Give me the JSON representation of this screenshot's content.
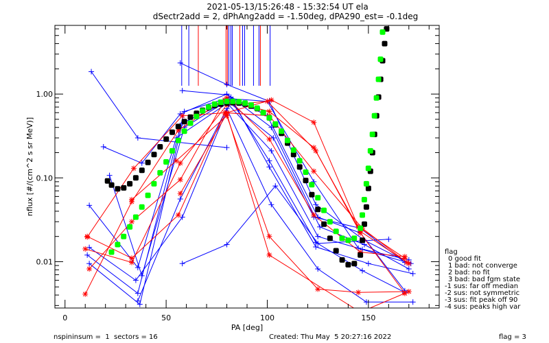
{
  "chart_data": {
    "type": "line",
    "title_line1": "2021-05-13/15:26:48 - 15:32:54 UT ela",
    "title_line2": "dSectr2add = 2, dPhAng2add = -1.50deg, dPA290_est=  -0.1deg",
    "xlabel": "PA [deg]",
    "ylabel": "nflux [#/(cm^2 s sr MeV)]",
    "xlim": [
      -5,
      185
    ],
    "ylim": [
      0.0028,
      6.6
    ],
    "yscale": "log",
    "x_ticks": [
      {
        "value": 0,
        "label": "0"
      },
      {
        "value": 50,
        "label": "50"
      },
      {
        "value": 100,
        "label": "100"
      },
      {
        "value": 150,
        "label": "150"
      }
    ],
    "y_ticks": [
      {
        "value": 1.0,
        "label": "1.00"
      },
      {
        "value": 0.1,
        "label": "0.10"
      },
      {
        "value": 0.01,
        "label": "0.01"
      }
    ],
    "vertical_markers": [
      {
        "x": 57.7,
        "color": "#0000ff"
      },
      {
        "x": 61.2,
        "color": "#0000ff"
      },
      {
        "x": 65.9,
        "color": "#ff0000"
      },
      {
        "x": 79.6,
        "color": "#ff0000"
      },
      {
        "x": 80.3,
        "color": "#ff0000"
      },
      {
        "x": 81.0,
        "color": "#0000ff"
      },
      {
        "x": 82.0,
        "color": "#0000ff"
      },
      {
        "x": 82.7,
        "color": "#0000ff"
      },
      {
        "x": 86.4,
        "color": "#ff0000"
      },
      {
        "x": 87.8,
        "color": "#0000ff"
      },
      {
        "x": 88.8,
        "color": "#0000ff"
      },
      {
        "x": 93.2,
        "color": "#0000ff"
      },
      {
        "x": 95.9,
        "color": "#0000ff"
      },
      {
        "x": 96.6,
        "color": "#ff0000"
      },
      {
        "x": 101.4,
        "color": "#0000ff"
      }
    ],
    "series": [
      {
        "name": "blue-1",
        "color": "#0000ff",
        "marker": "plus",
        "x": [
          13,
          36,
          80
        ],
        "y": [
          1.85,
          0.3,
          0.23
        ]
      },
      {
        "name": "blue-2",
        "color": "#0000ff",
        "marker": "plus",
        "x": [
          57,
          80,
          101,
          124,
          148,
          170
        ],
        "y": [
          2.35,
          1.3,
          0.82,
          0.048,
          0.018,
          0.0097
        ]
      },
      {
        "name": "blue-3",
        "color": "#0000ff",
        "marker": "plus",
        "x": [
          58,
          80,
          100,
          125,
          146,
          168
        ],
        "y": [
          1.1,
          0.98,
          0.55,
          0.034,
          0.022,
          0.0045
        ]
      },
      {
        "name": "blue-4",
        "color": "#0000ff",
        "marker": "plus",
        "x": [
          19,
          38,
          57,
          80,
          102,
          126,
          148,
          170
        ],
        "y": [
          0.235,
          0.15,
          0.58,
          1.0,
          0.4,
          0.026,
          0.016,
          0.0082
        ]
      },
      {
        "name": "blue-5",
        "color": "#0000ff",
        "marker": "plus",
        "x": [
          12,
          36,
          55,
          81,
          103,
          123,
          146,
          168
        ],
        "y": [
          0.047,
          0.0085,
          0.3,
          0.8,
          0.3,
          0.034,
          0.025,
          0.0098
        ]
      },
      {
        "name": "blue-6",
        "color": "#0000ff",
        "marker": "plus",
        "x": [
          12,
          35,
          58,
          81,
          102,
          125,
          147,
          171
        ],
        "y": [
          0.0148,
          0.006,
          0.034,
          0.74,
          0.21,
          0.02,
          0.014,
          0.0095
        ]
      },
      {
        "name": "blue-7",
        "color": "#0000ff",
        "marker": "plus",
        "x": [
          11,
          36,
          59,
          82,
          101,
          124,
          150,
          172
        ],
        "y": [
          0.012,
          0.0042,
          0.62,
          0.92,
          0.135,
          0.015,
          0.0095,
          0.0072
        ]
      },
      {
        "name": "blue-8",
        "color": "#0000ff",
        "marker": "plus",
        "x": [
          12,
          37,
          58,
          82,
          101,
          124,
          147,
          168
        ],
        "y": [
          0.0095,
          0.0031,
          0.45,
          0.85,
          0.16,
          0.017,
          0.0078,
          0.0043
        ]
      },
      {
        "name": "blue-9",
        "color": "#0000ff",
        "marker": "plus",
        "x": [
          58,
          80,
          104,
          125,
          160
        ],
        "y": [
          0.0095,
          0.016,
          0.08,
          0.0165,
          0.0185
        ]
      },
      {
        "name": "blue-10",
        "color": "#0000ff",
        "marker": "plus",
        "x": [
          22,
          38,
          59,
          82,
          100,
          123,
          145,
          170
        ],
        "y": [
          0.107,
          0.0068,
          0.4,
          0.88,
          0.82,
          0.09,
          0.0145,
          0.0105
        ]
      },
      {
        "name": "blue-11",
        "color": "#0000ff",
        "marker": "plus",
        "x": [
          36,
          57,
          80,
          102,
          125,
          149,
          172
        ],
        "y": [
          0.0034,
          0.056,
          0.67,
          0.048,
          0.0082,
          0.0033,
          0.0033
        ]
      },
      {
        "name": "red-1",
        "color": "#ff0000",
        "marker": "star",
        "x": [
          11,
          33,
          56,
          79,
          101,
          123,
          147,
          169
        ],
        "y": [
          0.02,
          0.011,
          0.036,
          0.6,
          0.55,
          0.12,
          0.025,
          0.0098
        ]
      },
      {
        "name": "red-2",
        "color": "#ff0000",
        "marker": "star",
        "x": [
          10,
          33,
          57,
          80,
          100,
          124,
          146,
          168
        ],
        "y": [
          0.0142,
          0.0098,
          0.15,
          0.74,
          0.82,
          0.21,
          0.022,
          0.0042
        ]
      },
      {
        "name": "red-3",
        "color": "#ff0000",
        "marker": "star",
        "x": [
          10,
          33,
          56,
          80,
          101,
          123,
          146,
          168
        ],
        "y": [
          0.0041,
          0.052,
          0.37,
          0.9,
          0.29,
          0.036,
          0.013,
          0.0115
        ]
      },
      {
        "name": "red-4",
        "color": "#ff0000",
        "marker": "star",
        "x": [
          11,
          34,
          58,
          80,
          102,
          123,
          145,
          168
        ],
        "y": [
          0.0197,
          0.13,
          0.55,
          0.6,
          0.85,
          0.46,
          0.026,
          0.011
        ]
      },
      {
        "name": "red-5",
        "color": "#ff0000",
        "marker": "star",
        "x": [
          12,
          33,
          57,
          79,
          101,
          123,
          146,
          170
        ],
        "y": [
          0.0082,
          0.03,
          0.095,
          0.85,
          0.62,
          0.23,
          0.023,
          0.0095
        ]
      },
      {
        "name": "red-6",
        "color": "#ff0000",
        "marker": "star",
        "x": [
          57,
          80,
          101,
          146,
          168
        ],
        "y": [
          0.065,
          0.58,
          0.012,
          0.0025,
          0.0042
        ]
      },
      {
        "name": "red-7",
        "color": "#ff0000",
        "marker": "star",
        "x": [
          33,
          55,
          80,
          101,
          125,
          145,
          170
        ],
        "y": [
          0.055,
          0.16,
          0.55,
          0.02,
          0.0047,
          0.0043,
          0.0044
        ]
      }
    ],
    "fit_curves": [
      {
        "name": "black-fit",
        "color": "#000000",
        "x": [
          20,
          22,
          25,
          28,
          31,
          34,
          37,
          40,
          43,
          46,
          49,
          52,
          55,
          58,
          61,
          64,
          67,
          70,
          73,
          76,
          79,
          82,
          85,
          88,
          91,
          94,
          97,
          100,
          103,
          106,
          109,
          112,
          115,
          118,
          121,
          124,
          127,
          130,
          133,
          136,
          139,
          142,
          145,
          146,
          147,
          148,
          149,
          150,
          151,
          152,
          153,
          154,
          155,
          156,
          157,
          158
        ],
        "y": [
          0.092,
          0.082,
          0.074,
          0.076,
          0.085,
          0.1,
          0.123,
          0.153,
          0.19,
          0.235,
          0.29,
          0.35,
          0.41,
          0.47,
          0.53,
          0.59,
          0.64,
          0.69,
          0.73,
          0.76,
          0.78,
          0.79,
          0.78,
          0.76,
          0.72,
          0.67,
          0.6,
          0.52,
          0.43,
          0.34,
          0.26,
          0.19,
          0.135,
          0.093,
          0.063,
          0.042,
          0.028,
          0.019,
          0.0135,
          0.0105,
          0.0092,
          0.0095,
          0.012,
          0.018,
          0.028,
          0.045,
          0.075,
          0.12,
          0.2,
          0.33,
          0.55,
          0.92,
          1.5,
          2.5,
          4.0,
          6.0
        ]
      },
      {
        "name": "green-fit",
        "color": "#00ff00",
        "x": [
          23,
          26,
          29,
          32,
          35,
          38,
          41,
          44,
          47,
          50,
          53,
          56,
          59,
          62,
          65,
          68,
          71,
          74,
          77,
          80,
          83,
          86,
          89,
          92,
          95,
          98,
          101,
          104,
          107,
          110,
          113,
          116,
          119,
          122,
          125,
          128,
          131,
          134,
          137,
          140,
          143,
          146,
          147,
          148,
          149,
          150,
          151,
          152,
          153,
          154,
          155,
          156,
          157
        ],
        "y": [
          0.013,
          0.016,
          0.02,
          0.026,
          0.034,
          0.045,
          0.062,
          0.085,
          0.115,
          0.155,
          0.21,
          0.28,
          0.36,
          0.45,
          0.54,
          0.63,
          0.7,
          0.76,
          0.8,
          0.82,
          0.82,
          0.81,
          0.78,
          0.74,
          0.68,
          0.6,
          0.52,
          0.44,
          0.36,
          0.28,
          0.215,
          0.16,
          0.117,
          0.083,
          0.058,
          0.041,
          0.03,
          0.023,
          0.019,
          0.018,
          0.019,
          0.025,
          0.036,
          0.055,
          0.085,
          0.13,
          0.21,
          0.33,
          0.55,
          0.9,
          1.5,
          2.6,
          5.5
        ]
      }
    ],
    "legend": {
      "position": "right",
      "title": "flag",
      "entries": [
        "0 good fit",
        "1 bad: not converge",
        "2 bad: no fit",
        "3 bad: bad fgm state",
        "-1 sus: far off median",
        "-2 sus: not symmetric",
        "-3 sus: fit peak off 90",
        "-4 sus: peaks high var"
      ]
    },
    "footer": {
      "left": "nspininsum =  1  sectors = 16",
      "created": "Created: Thu May  5 20:27:16 2022",
      "flag": "flag = 3"
    }
  }
}
